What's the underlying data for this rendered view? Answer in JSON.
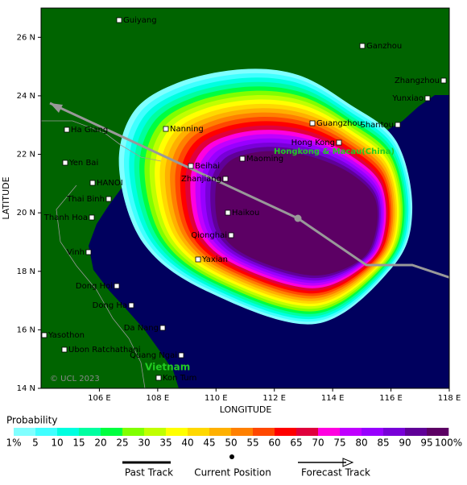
{
  "map": {
    "axes": {
      "x_label": "LONGITUDE",
      "y_label": "LATITUDE",
      "xlim": [
        104,
        118
      ],
      "ylim": [
        14,
        27
      ],
      "xticks": [
        {
          "value": 106,
          "label": "106 E"
        },
        {
          "value": 108,
          "label": "108 E"
        },
        {
          "value": 110,
          "label": "110 E"
        },
        {
          "value": 112,
          "label": "112 E"
        },
        {
          "value": 114,
          "label": "114 E"
        },
        {
          "value": 116,
          "label": "116 E"
        },
        {
          "value": 118,
          "label": "118 E"
        }
      ],
      "yticks": [
        {
          "value": 14,
          "label": "14 N"
        },
        {
          "value": 16,
          "label": "16 N"
        },
        {
          "value": 18,
          "label": "18 N"
        },
        {
          "value": 20,
          "label": "20 N"
        },
        {
          "value": 22,
          "label": "22 N"
        },
        {
          "value": 24,
          "label": "24 N"
        },
        {
          "value": 26,
          "label": "26 N"
        }
      ]
    },
    "places": [
      "Guiyang",
      "Ganzhou",
      "Zhangzhou",
      "Yunxiao",
      "Shantou",
      "Guangzhou",
      "Hong Kong",
      "Nanning",
      "Maoming",
      "Beihai",
      "Zhanjiang",
      "Ha Giang",
      "Yen Bai",
      "HANOI",
      "Thai Binh",
      "Thanh Hoa",
      "Haikou",
      "Qionghai",
      "Yaxian",
      "Vinh",
      "Dong Hoi",
      "Dong Ha",
      "Da Nang",
      "Yasothon",
      "Ubon Ratchathani",
      "Quang Ngai",
      "Kon Tum"
    ],
    "region_labels": {
      "hk": "Hongkong & Macau(China)",
      "vn": "Vietnam"
    },
    "copyright": "© UCL 2023",
    "legend": {
      "title": "Probability",
      "labels": [
        "1%",
        "5",
        "10",
        "15",
        "20",
        "25",
        "30",
        "35",
        "40",
        "45",
        "50",
        "55",
        "60",
        "65",
        "70",
        "75",
        "80",
        "85",
        "90",
        "95",
        "100%"
      ],
      "colors": [
        "#80ffff",
        "#40ffff",
        "#00ffe0",
        "#00ffa0",
        "#00ff40",
        "#80ff00",
        "#c0ff00",
        "#ffff00",
        "#ffd800",
        "#ffb000",
        "#ff8000",
        "#ff4800",
        "#ff0000",
        "#e0003c",
        "#ff00e0",
        "#c000ff",
        "#9800ff",
        "#7800d8",
        "#600098",
        "#5c0064"
      ]
    },
    "track_legend": {
      "past": "Past Track",
      "current": "Current Position",
      "forecast": "Forecast Track"
    }
  }
}
